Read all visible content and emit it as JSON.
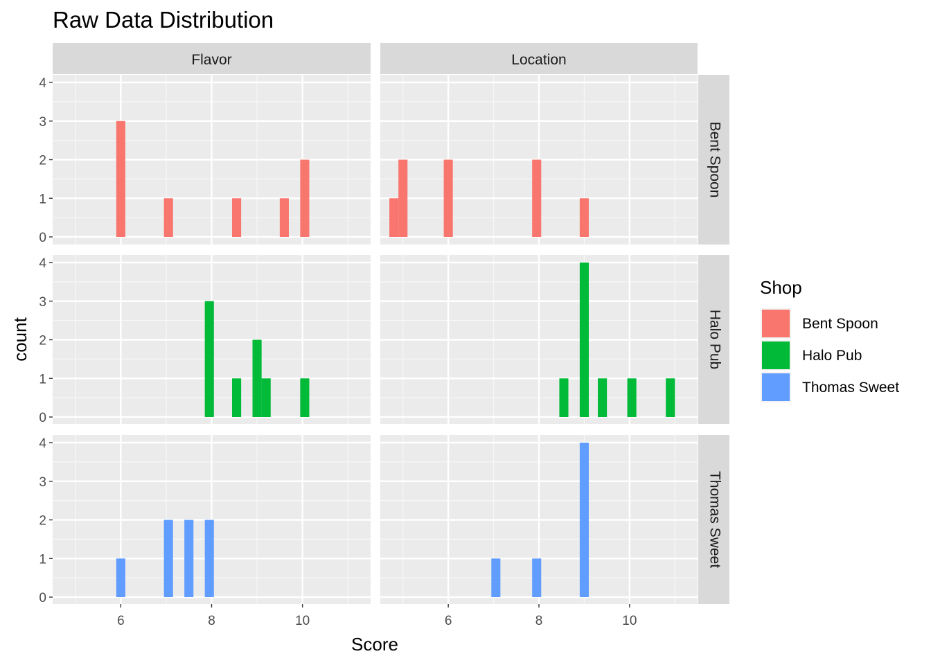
{
  "chart_data": {
    "type": "bar",
    "subtype": "faceted-histogram",
    "title": "Raw Data Distribution",
    "xlabel": "Score",
    "ylabel": "count",
    "xlim": [
      4.5,
      11.5
    ],
    "ylim": [
      0,
      4
    ],
    "x_ticks": [
      6,
      8,
      10
    ],
    "y_ticks": [
      0,
      1,
      2,
      3,
      4
    ],
    "bin_width": 0.2,
    "grid": true,
    "columns": [
      "Flavor",
      "Location"
    ],
    "rows": [
      "Bent Spoon",
      "Halo Pub",
      "Thomas Sweet"
    ],
    "legend": {
      "title": "Shop",
      "placement": "right",
      "entries": [
        {
          "name": "Bent Spoon",
          "color": "#F8766D"
        },
        {
          "name": "Halo Pub",
          "color": "#00BA38"
        },
        {
          "name": "Thomas Sweet",
          "color": "#619CFF"
        }
      ]
    },
    "panels": [
      {
        "column": "Flavor",
        "row": "Bent Spoon",
        "bins": [
          {
            "x": 6,
            "count": 3
          },
          {
            "x": 7.05,
            "count": 1
          },
          {
            "x": 8.55,
            "count": 1
          },
          {
            "x": 9.6,
            "count": 1
          },
          {
            "x": 10.05,
            "count": 2
          }
        ]
      },
      {
        "column": "Location",
        "row": "Bent Spoon",
        "bins": [
          {
            "x": 4.8,
            "count": 1
          },
          {
            "x": 5.0,
            "count": 2
          },
          {
            "x": 6.0,
            "count": 2
          },
          {
            "x": 7.95,
            "count": 2
          },
          {
            "x": 9.0,
            "count": 1
          }
        ]
      },
      {
        "column": "Flavor",
        "row": "Halo Pub",
        "bins": [
          {
            "x": 7.95,
            "count": 3
          },
          {
            "x": 8.55,
            "count": 1
          },
          {
            "x": 9.0,
            "count": 2
          },
          {
            "x": 9.2,
            "count": 1
          },
          {
            "x": 10.05,
            "count": 1
          }
        ]
      },
      {
        "column": "Location",
        "row": "Halo Pub",
        "bins": [
          {
            "x": 8.55,
            "count": 1
          },
          {
            "x": 9.0,
            "count": 4
          },
          {
            "x": 9.4,
            "count": 1
          },
          {
            "x": 10.05,
            "count": 1
          },
          {
            "x": 10.9,
            "count": 1
          }
        ]
      },
      {
        "column": "Flavor",
        "row": "Thomas Sweet",
        "bins": [
          {
            "x": 6,
            "count": 1
          },
          {
            "x": 7.05,
            "count": 2
          },
          {
            "x": 7.5,
            "count": 2
          },
          {
            "x": 7.95,
            "count": 2
          }
        ]
      },
      {
        "column": "Location",
        "row": "Thomas Sweet",
        "bins": [
          {
            "x": 7.05,
            "count": 1
          },
          {
            "x": 7.95,
            "count": 1
          },
          {
            "x": 9.0,
            "count": 4
          }
        ]
      }
    ]
  }
}
